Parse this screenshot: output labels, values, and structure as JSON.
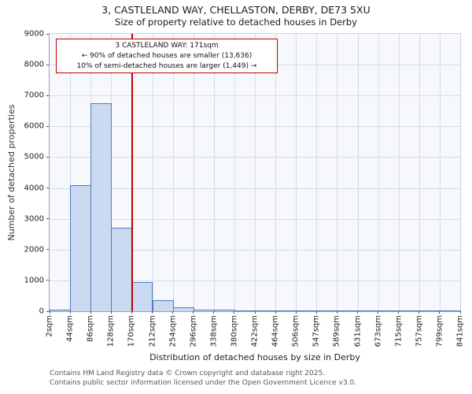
{
  "chart_data": {
    "type": "bar",
    "title": "3, CASTLELAND WAY, CHELLASTON, DERBY, DE73 5XU",
    "subtitle": "Size of property relative to detached houses in Derby",
    "xlabel": "Distribution of detached houses by size in Derby",
    "ylabel": "Number of detached properties",
    "ylim": [
      0,
      9000
    ],
    "y_ticks": [
      0,
      1000,
      2000,
      3000,
      4000,
      5000,
      6000,
      7000,
      8000,
      9000
    ],
    "grid": true,
    "bin_edges_sqm": [
      2,
      44,
      86,
      128,
      170,
      212,
      254,
      296,
      338,
      380,
      422,
      464,
      506,
      547,
      589,
      631,
      673,
      715,
      757,
      799,
      841
    ],
    "x_tick_labels": [
      "2sqm",
      "44sqm",
      "86sqm",
      "128sqm",
      "170sqm",
      "212sqm",
      "254sqm",
      "296sqm",
      "338sqm",
      "380sqm",
      "422sqm",
      "464sqm",
      "506sqm",
      "547sqm",
      "589sqm",
      "631sqm",
      "673sqm",
      "715sqm",
      "757sqm",
      "799sqm",
      "841sqm"
    ],
    "values": [
      50,
      4100,
      6750,
      2700,
      950,
      350,
      120,
      60,
      40,
      25,
      15,
      10,
      0,
      0,
      0,
      0,
      0,
      0,
      0,
      0
    ],
    "marker": {
      "value_sqm": 171,
      "color": "#bb0000"
    },
    "annotation": {
      "line1": "3 CASTLELAND WAY: 171sqm",
      "line2": "← 90% of detached houses are smaller (13,636)",
      "line3": "10% of semi-detached houses are larger (1,449) →"
    },
    "colors": {
      "bar_fill": "#cbdaf1",
      "bar_border": "#4d7ebf",
      "marker_line": "#bb0000",
      "annotation_border": "#c00000",
      "gridline": "#d3dbed",
      "plot_background": "#f7f8fc"
    }
  },
  "footer": {
    "line1": "Contains HM Land Registry data © Crown copyright and database right 2025.",
    "line2": "Contains public sector information licensed under the Open Government Licence v3.0."
  }
}
